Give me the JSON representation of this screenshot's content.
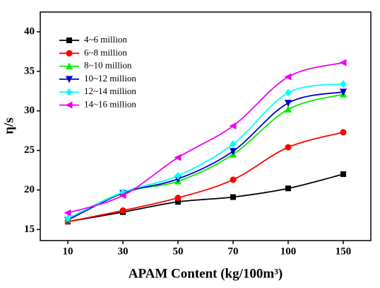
{
  "chart_data": {
    "type": "line",
    "x_label": "APAM Content (kg/100m³)",
    "y_label": "η/s",
    "categories": [
      "10",
      "30",
      "50",
      "70",
      "100",
      "150"
    ],
    "series": [
      {
        "name": "4~6 million",
        "color": "#000000",
        "marker": "square",
        "values": [
          16.0,
          17.2,
          18.5,
          19.1,
          20.2,
          22.0
        ]
      },
      {
        "name": "6~8 million",
        "color": "#ff0000",
        "marker": "circle",
        "values": [
          16.0,
          17.4,
          19.0,
          21.3,
          25.4,
          27.3
        ]
      },
      {
        "name": "8~10 million",
        "color": "#00ee00",
        "marker": "triangle-up",
        "values": [
          16.3,
          19.7,
          21.1,
          24.5,
          30.2,
          32.1
        ]
      },
      {
        "name": "10~12 million",
        "color": "#0000cc",
        "marker": "triangle-down",
        "values": [
          16.2,
          19.6,
          21.4,
          24.9,
          31.0,
          32.4
        ]
      },
      {
        "name": "12~14 million",
        "color": "#00ffff",
        "marker": "diamond",
        "values": [
          16.4,
          19.7,
          21.8,
          25.8,
          32.3,
          33.4
        ]
      },
      {
        "name": "14~16 million",
        "color": "#ee00ee",
        "marker": "triangle-left",
        "values": [
          17.1,
          19.3,
          24.1,
          28.1,
          34.3,
          36.1
        ]
      }
    ],
    "ylim": [
      13.6,
      42.5
    ],
    "yticks": [
      15,
      20,
      25,
      30,
      35,
      40
    ],
    "grid": false
  }
}
